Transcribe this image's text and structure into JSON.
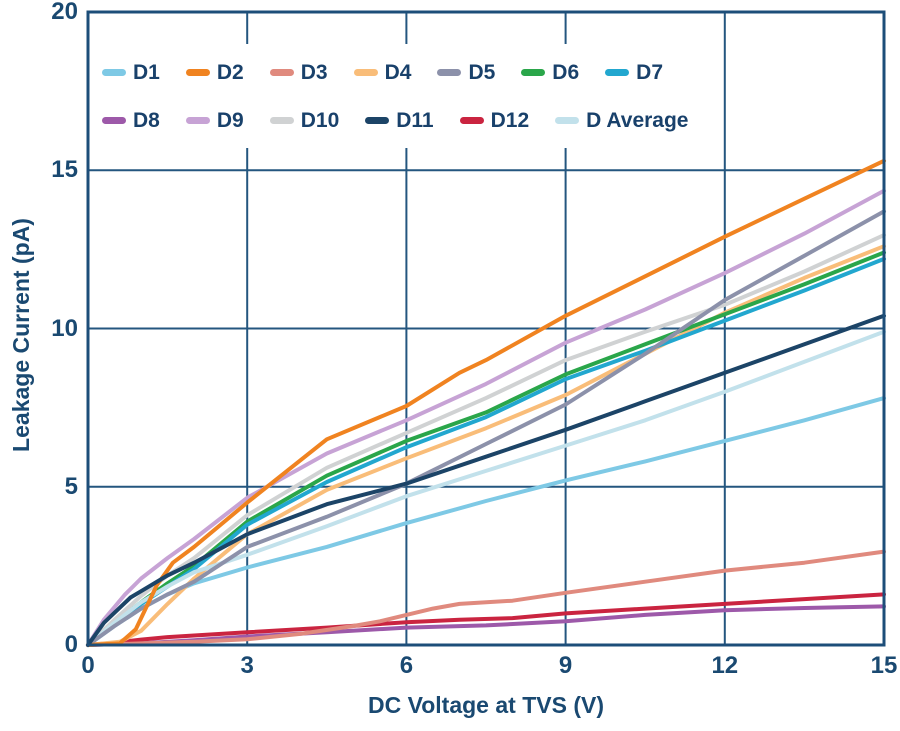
{
  "axis": {
    "x_title": "DC Voltage at TVS (V)",
    "y_title": "Leakage Current (pA)"
  },
  "colors": {
    "background": "#ffffff",
    "text": "#1a4971",
    "plot_border": "#1d4e79",
    "gridline": "#24567f"
  },
  "chart_data": {
    "type": "line",
    "title": "",
    "xlabel": "DC Voltage at TVS (V)",
    "ylabel": "Leakage Current (pA)",
    "xlim": [
      0,
      15
    ],
    "ylim": [
      0,
      20
    ],
    "x_ticks": [
      0,
      3,
      6,
      9,
      12,
      15
    ],
    "y_ticks": [
      0,
      5,
      10,
      15,
      20
    ],
    "grid": true,
    "legend_position": "top-left inside plot, two rows",
    "legend_rows": [
      [
        "D1",
        "D2",
        "D3",
        "D4",
        "D5",
        "D6",
        "D7"
      ],
      [
        "D8",
        "D9",
        "D10",
        "D11",
        "D12",
        "D Average"
      ]
    ],
    "draw_order": [
      "D1",
      "D8",
      "D12",
      "D3",
      "D4",
      "D6",
      "D7",
      "D10",
      "D Average",
      "D5",
      "D9",
      "D2",
      "D11"
    ],
    "series": [
      {
        "name": "D1",
        "color": "#7ec9e5",
        "points": [
          [
            0,
            0
          ],
          [
            0.5,
            0.6
          ],
          [
            1,
            1.15
          ],
          [
            1.5,
            1.6
          ],
          [
            2,
            1.95
          ],
          [
            3,
            2.45
          ],
          [
            4.5,
            3.1
          ],
          [
            6,
            3.85
          ],
          [
            7.5,
            4.55
          ],
          [
            9,
            5.2
          ],
          [
            10.5,
            5.8
          ],
          [
            12,
            6.45
          ],
          [
            13.5,
            7.1
          ],
          [
            15,
            7.8
          ]
        ]
      },
      {
        "name": "D2",
        "color": "#f08320",
        "points": [
          [
            0,
            0
          ],
          [
            0.6,
            0.05
          ],
          [
            0.9,
            0.5
          ],
          [
            1.3,
            1.9
          ],
          [
            1.6,
            2.6
          ],
          [
            2,
            3.1
          ],
          [
            3,
            4.5
          ],
          [
            4.5,
            6.5
          ],
          [
            6,
            7.55
          ],
          [
            7,
            8.6
          ],
          [
            7.5,
            9.0
          ],
          [
            9,
            10.4
          ],
          [
            10.5,
            11.65
          ],
          [
            12,
            12.9
          ],
          [
            13.5,
            14.1
          ],
          [
            15,
            15.3
          ]
        ]
      },
      {
        "name": "D3",
        "color": "#e08a7e",
        "points": [
          [
            0,
            0
          ],
          [
            1,
            0.05
          ],
          [
            2,
            0.1
          ],
          [
            3,
            0.18
          ],
          [
            4,
            0.35
          ],
          [
            5,
            0.6
          ],
          [
            5.5,
            0.75
          ],
          [
            6,
            0.95
          ],
          [
            6.5,
            1.15
          ],
          [
            7,
            1.3
          ],
          [
            8,
            1.4
          ],
          [
            9,
            1.65
          ],
          [
            10.5,
            2.0
          ],
          [
            12,
            2.35
          ],
          [
            13.5,
            2.6
          ],
          [
            15,
            2.95
          ]
        ]
      },
      {
        "name": "D4",
        "color": "#f9bd79",
        "points": [
          [
            0,
            0
          ],
          [
            0.6,
            0.1
          ],
          [
            1,
            0.45
          ],
          [
            1.5,
            1.3
          ],
          [
            2,
            2.1
          ],
          [
            3,
            3.5
          ],
          [
            4.5,
            4.9
          ],
          [
            6,
            5.9
          ],
          [
            7.5,
            6.85
          ],
          [
            9,
            7.9
          ],
          [
            10.5,
            9.2
          ],
          [
            12,
            10.5
          ],
          [
            13.5,
            11.6
          ],
          [
            15,
            12.6
          ]
        ]
      },
      {
        "name": "D5",
        "color": "#8c91aa",
        "points": [
          [
            0,
            0
          ],
          [
            0.5,
            0.6
          ],
          [
            1,
            1.15
          ],
          [
            1.5,
            1.6
          ],
          [
            2,
            2.0
          ],
          [
            3,
            3.1
          ],
          [
            4.5,
            4.05
          ],
          [
            6,
            5.1
          ],
          [
            7.5,
            6.35
          ],
          [
            9,
            7.6
          ],
          [
            10.5,
            9.2
          ],
          [
            12,
            10.9
          ],
          [
            13.5,
            12.3
          ],
          [
            15,
            13.7
          ]
        ]
      },
      {
        "name": "D6",
        "color": "#2aa64a",
        "points": [
          [
            0,
            0
          ],
          [
            0.5,
            0.7
          ],
          [
            1,
            1.35
          ],
          [
            1.5,
            1.95
          ],
          [
            2,
            2.5
          ],
          [
            3,
            3.9
          ],
          [
            4.5,
            5.35
          ],
          [
            6,
            6.45
          ],
          [
            7.5,
            7.35
          ],
          [
            9,
            8.55
          ],
          [
            10.5,
            9.5
          ],
          [
            12,
            10.45
          ],
          [
            13.5,
            11.4
          ],
          [
            15,
            12.4
          ]
        ]
      },
      {
        "name": "D7",
        "color": "#22a7cf",
        "points": [
          [
            0,
            0
          ],
          [
            0.5,
            0.65
          ],
          [
            1,
            1.3
          ],
          [
            1.5,
            1.85
          ],
          [
            2,
            2.4
          ],
          [
            3,
            3.8
          ],
          [
            4.5,
            5.15
          ],
          [
            6,
            6.25
          ],
          [
            7.5,
            7.2
          ],
          [
            9,
            8.4
          ],
          [
            10.5,
            9.3
          ],
          [
            12,
            10.25
          ],
          [
            13.5,
            11.2
          ],
          [
            15,
            12.2
          ]
        ]
      },
      {
        "name": "D8",
        "color": "#9d59a9",
        "points": [
          [
            0,
            0
          ],
          [
            1,
            0.05
          ],
          [
            2,
            0.15
          ],
          [
            3,
            0.27
          ],
          [
            4.5,
            0.4
          ],
          [
            6,
            0.55
          ],
          [
            7.5,
            0.62
          ],
          [
            9,
            0.75
          ],
          [
            10.5,
            0.95
          ],
          [
            12,
            1.1
          ],
          [
            13.5,
            1.17
          ],
          [
            15,
            1.22
          ]
        ]
      },
      {
        "name": "D9",
        "color": "#c7a3d5",
        "points": [
          [
            0,
            0
          ],
          [
            0.3,
            0.8
          ],
          [
            0.7,
            1.6
          ],
          [
            1,
            2.1
          ],
          [
            1.5,
            2.75
          ],
          [
            2,
            3.35
          ],
          [
            3,
            4.65
          ],
          [
            4.5,
            6.05
          ],
          [
            6,
            7.1
          ],
          [
            7.5,
            8.25
          ],
          [
            9,
            9.55
          ],
          [
            10.5,
            10.6
          ],
          [
            12,
            11.75
          ],
          [
            13.5,
            13.0
          ],
          [
            15,
            14.35
          ]
        ]
      },
      {
        "name": "D10",
        "color": "#d0d2d3",
        "points": [
          [
            0,
            0
          ],
          [
            0.5,
            0.8
          ],
          [
            1,
            1.55
          ],
          [
            1.5,
            2.2
          ],
          [
            2,
            2.75
          ],
          [
            3,
            4.1
          ],
          [
            4.5,
            5.6
          ],
          [
            6,
            6.7
          ],
          [
            7.5,
            7.8
          ],
          [
            9,
            9.0
          ],
          [
            10.5,
            9.9
          ],
          [
            12,
            10.75
          ],
          [
            13.5,
            11.8
          ],
          [
            15,
            12.95
          ]
        ]
      },
      {
        "name": "D11",
        "color": "#1c4467",
        "points": [
          [
            0,
            0
          ],
          [
            0.3,
            0.7
          ],
          [
            0.8,
            1.5
          ],
          [
            1,
            1.7
          ],
          [
            1.5,
            2.2
          ],
          [
            2,
            2.6
          ],
          [
            3,
            3.5
          ],
          [
            4.5,
            4.45
          ],
          [
            6,
            5.1
          ],
          [
            7.5,
            5.95
          ],
          [
            9,
            6.8
          ],
          [
            10.5,
            7.7
          ],
          [
            12,
            8.6
          ],
          [
            13.5,
            9.5
          ],
          [
            15,
            10.4
          ]
        ]
      },
      {
        "name": "D12",
        "color": "#ca2440",
        "points": [
          [
            0,
            0
          ],
          [
            0.5,
            0.07
          ],
          [
            1,
            0.17
          ],
          [
            1.5,
            0.25
          ],
          [
            2,
            0.3
          ],
          [
            3,
            0.4
          ],
          [
            4.5,
            0.55
          ],
          [
            6,
            0.72
          ],
          [
            7,
            0.8
          ],
          [
            8,
            0.85
          ],
          [
            9,
            1.0
          ],
          [
            10.5,
            1.15
          ],
          [
            12,
            1.3
          ],
          [
            13.5,
            1.45
          ],
          [
            15,
            1.6
          ]
        ]
      },
      {
        "name": "D Average",
        "color": "#c2e1eb",
        "points": [
          [
            0,
            0
          ],
          [
            0.5,
            0.7
          ],
          [
            1,
            1.35
          ],
          [
            1.5,
            1.85
          ],
          [
            2,
            2.3
          ],
          [
            3,
            2.85
          ],
          [
            4.5,
            3.75
          ],
          [
            6,
            4.7
          ],
          [
            7.5,
            5.5
          ],
          [
            9,
            6.3
          ],
          [
            10.5,
            7.1
          ],
          [
            12,
            8.0
          ],
          [
            13.5,
            8.95
          ],
          [
            15,
            9.9
          ]
        ]
      }
    ]
  }
}
